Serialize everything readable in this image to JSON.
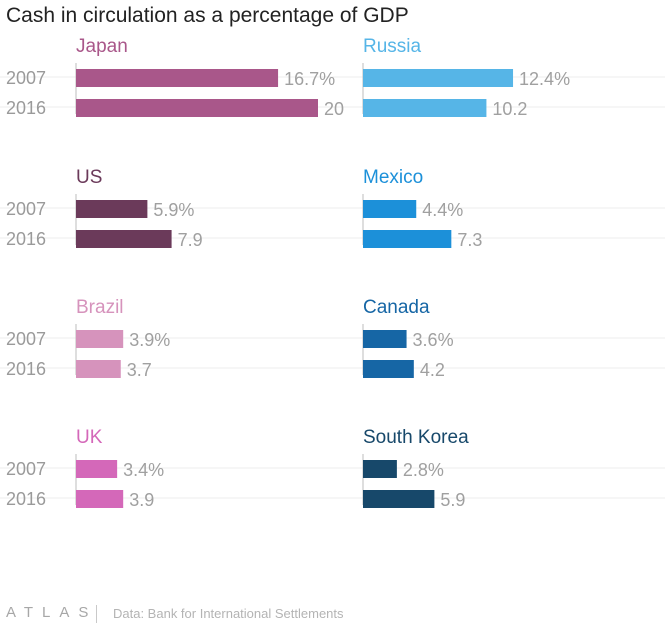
{
  "title": "Cash in circulation as a percentage of GDP",
  "footer": {
    "brand": "ATLAS",
    "source": "Data: Bank for International Settlements"
  },
  "chart_data": {
    "type": "bar",
    "title": "Cash in circulation as a percentage of GDP",
    "categories": [
      "2007",
      "2016"
    ],
    "value_suffix_first": "%",
    "panels": [
      {
        "name": "Japan",
        "color": "#a9578a",
        "values": [
          16.7,
          20
        ]
      },
      {
        "name": "Russia",
        "color": "#56b5e7",
        "values": [
          12.4,
          10.2
        ]
      },
      {
        "name": "US",
        "color": "#6b3a5a",
        "values": [
          5.9,
          7.9
        ]
      },
      {
        "name": "Mexico",
        "color": "#1c90d9",
        "values": [
          4.4,
          7.3
        ]
      },
      {
        "name": "Brazil",
        "color": "#d693bc",
        "values": [
          3.9,
          3.7
        ]
      },
      {
        "name": "Canada",
        "color": "#1666a5",
        "values": [
          3.6,
          4.2
        ]
      },
      {
        "name": "UK",
        "color": "#d468b9",
        "values": [
          3.4,
          3.9
        ]
      },
      {
        "name": "South Korea",
        "color": "#17486a",
        "values": [
          2.8,
          5.9
        ]
      }
    ],
    "value_labels": [
      [
        "16.7%",
        "20"
      ],
      [
        "12.4%",
        "10.2"
      ],
      [
        "5.9%",
        "7.9"
      ],
      [
        "4.4%",
        "7.3"
      ],
      [
        "3.9%",
        "3.7"
      ],
      [
        "3.6%",
        "4.2"
      ],
      [
        "3.4%",
        "3.9"
      ],
      [
        "2.8%",
        "5.9"
      ]
    ],
    "xlim": [
      0,
      20
    ],
    "xlabel": "",
    "ylabel": ""
  }
}
